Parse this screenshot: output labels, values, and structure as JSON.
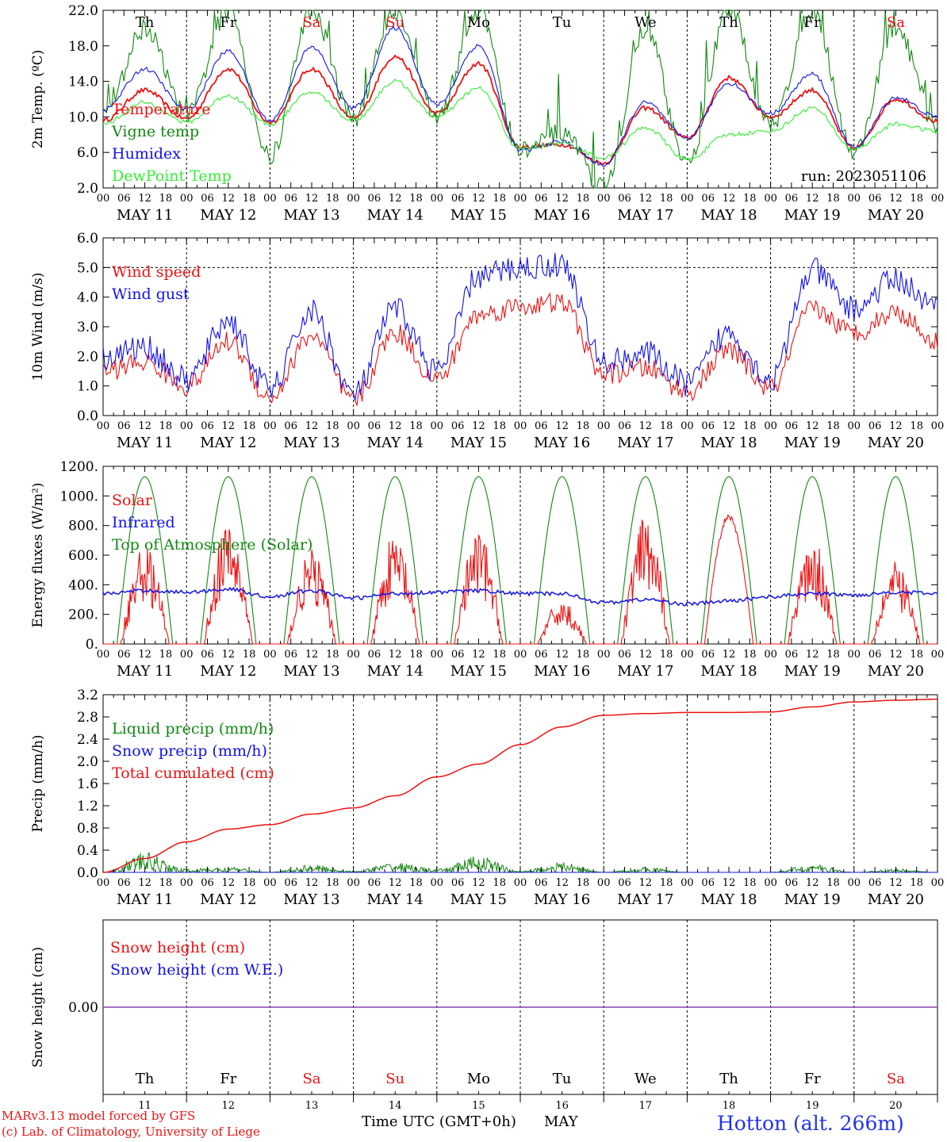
{
  "run_label": "run: 2023051106",
  "x_axis": {
    "hour_ticks": [
      "00",
      "06",
      "12",
      "18"
    ],
    "dates": [
      "MAY 11",
      "MAY 12",
      "MAY 13",
      "MAY 14",
      "MAY 15",
      "MAY 16",
      "MAY 17",
      "MAY 18",
      "MAY 19",
      "MAY 20"
    ],
    "weekdays": [
      "Th",
      "Fr",
      "Sa",
      "Su",
      "Mo",
      "Tu",
      "We",
      "Th",
      "Fr",
      "Sa"
    ],
    "weekday_colors": [
      "#000000",
      "#000000",
      "#ee1111",
      "#ee1111",
      "#000000",
      "#000000",
      "#000000",
      "#000000",
      "#000000",
      "#ee1111"
    ],
    "day_numbers": [
      "11",
      "12",
      "13",
      "14",
      "15",
      "16",
      "17",
      "18",
      "19",
      "20"
    ],
    "title": "Time UTC (GMT+0h)",
    "month": "MAY"
  },
  "footer": {
    "credit_line1": "MARv3.13 model forced by GFS",
    "credit_line2": "(c) Lab. of Climatology, University of Liege",
    "station": "Hotton (alt. 266m)"
  },
  "colors": {
    "red": "#ee1111",
    "blue": "#1111ee",
    "green": "#118811",
    "lightgreen": "#33ee33",
    "purple": "#8844aa"
  },
  "chart_data": [
    {
      "type": "line",
      "ylabel": "2m Temp. (ºC)",
      "ylim": [
        2.0,
        22.0
      ],
      "yticks": [
        "2.0",
        "6.0",
        "10.0",
        "14.0",
        "18.0",
        "22.0"
      ],
      "x": [
        "MAY 11 00",
        "MAY 11 12",
        "MAY 12 00",
        "MAY 12 12",
        "MAY 13 00",
        "MAY 13 12",
        "MAY 14 00",
        "MAY 14 12",
        "MAY 15 00",
        "MAY 15 12",
        "MAY 16 00",
        "MAY 16 12",
        "MAY 17 00",
        "MAY 17 12",
        "MAY 18 00",
        "MAY 18 12",
        "MAY 19 00",
        "MAY 19 12",
        "MAY 20 00",
        "MAY 20 12",
        "MAY 21 00"
      ],
      "series": [
        {
          "name": "Temperature",
          "color": "red",
          "values": [
            9.6,
            13.0,
            9.8,
            15.4,
            9.4,
            15.4,
            9.8,
            16.8,
            10.4,
            16.0,
            6.6,
            6.9,
            4.8,
            11.0,
            7.6,
            14.4,
            10.0,
            13.0,
            6.5,
            12.0,
            9.5
          ]
        },
        {
          "name": "Vigne temp",
          "color": "green",
          "values": [
            9.8,
            20.0,
            10.2,
            22.0,
            5.5,
            22.0,
            9.8,
            22.0,
            10.0,
            22.0,
            6.2,
            8.0,
            2.0,
            20.0,
            4.5,
            22.0,
            9.0,
            22.0,
            6.0,
            20.0,
            9.0
          ]
        },
        {
          "name": "Humidex",
          "color": "blue",
          "values": [
            10.8,
            15.4,
            10.8,
            17.4,
            9.6,
            17.8,
            11.0,
            20.0,
            11.4,
            18.0,
            6.2,
            7.2,
            4.6,
            11.6,
            7.6,
            13.8,
            10.4,
            14.8,
            6.6,
            12.2,
            10.0
          ]
        },
        {
          "name": "DewPoint Temp",
          "color": "lightgreen",
          "values": [
            9.2,
            11.6,
            9.4,
            12.4,
            9.2,
            12.8,
            9.6,
            14.0,
            10.0,
            13.2,
            6.4,
            7.0,
            5.4,
            8.8,
            5.2,
            8.0,
            8.4,
            11.0,
            6.4,
            9.2,
            8.4
          ]
        }
      ]
    },
    {
      "type": "line",
      "ylabel": "10m Wind (m/s)",
      "ylim": [
        0.0,
        6.0
      ],
      "yticks": [
        "0.0",
        "1.0",
        "2.0",
        "3.0",
        "4.0",
        "5.0",
        "6.0"
      ],
      "reference_line": 5.0,
      "x": [
        "MAY 11 00",
        "MAY 11 12",
        "MAY 12 00",
        "MAY 12 12",
        "MAY 13 00",
        "MAY 13 12",
        "MAY 14 00",
        "MAY 14 12",
        "MAY 15 00",
        "MAY 15 12",
        "MAY 16 00",
        "MAY 16 12",
        "MAY 17 00",
        "MAY 17 12",
        "MAY 18 00",
        "MAY 18 12",
        "MAY 19 00",
        "MAY 19 12",
        "MAY 20 00",
        "MAY 20 12",
        "MAY 21 00"
      ],
      "series": [
        {
          "name": "Wind speed",
          "color": "red",
          "values": [
            1.5,
            1.8,
            1.0,
            2.5,
            0.6,
            2.7,
            0.5,
            2.8,
            1.2,
            3.4,
            3.7,
            3.8,
            1.4,
            1.6,
            0.8,
            2.2,
            0.9,
            3.6,
            2.8,
            3.5,
            2.5
          ]
        },
        {
          "name": "Wind gust",
          "color": "blue",
          "values": [
            2.0,
            2.3,
            1.2,
            3.2,
            0.9,
            3.5,
            0.7,
            3.6,
            1.5,
            4.7,
            5.0,
            5.1,
            1.8,
            2.1,
            1.1,
            2.8,
            1.2,
            4.9,
            3.6,
            4.6,
            3.6
          ]
        }
      ]
    },
    {
      "type": "line",
      "ylabel": "Energy fluxes (W/m²)",
      "ylim": [
        0,
        1200
      ],
      "yticks": [
        "0.",
        "200.",
        "400.",
        "600.",
        "800.",
        "1000.",
        "1200."
      ],
      "x": [
        "MAY 11 00",
        "MAY 11 12",
        "MAY 12 00",
        "MAY 12 12",
        "MAY 13 00",
        "MAY 13 12",
        "MAY 14 00",
        "MAY 14 12",
        "MAY 15 00",
        "MAY 15 12",
        "MAY 16 00",
        "MAY 16 12",
        "MAY 17 00",
        "MAY 17 12",
        "MAY 18 00",
        "MAY 18 12",
        "MAY 19 00",
        "MAY 19 12",
        "MAY 20 00",
        "MAY 20 12",
        "MAY 21 00"
      ],
      "solar_peaks": [
        680,
        820,
        640,
        750,
        770,
        300,
        860,
        880,
        730,
        560
      ],
      "series": [
        {
          "name": "Solar",
          "color": "red"
        },
        {
          "name": "Infrared",
          "color": "blue",
          "values": [
            340,
            360,
            350,
            370,
            320,
            360,
            310,
            340,
            350,
            360,
            340,
            340,
            280,
            300,
            270,
            290,
            320,
            340,
            330,
            350,
            340
          ]
        },
        {
          "name": "Top of Atmosphere (Solar)",
          "color": "green",
          "peak": 1130
        }
      ]
    },
    {
      "type": "line",
      "ylabel": "Precip (mm/h)",
      "ylim": [
        0.0,
        3.2
      ],
      "yticks": [
        "0.0",
        "0.4",
        "0.8",
        "1.2",
        "1.6",
        "2.0",
        "2.4",
        "2.8",
        "3.2"
      ],
      "x": [
        "MAY 11 00",
        "MAY 11 12",
        "MAY 12 00",
        "MAY 12 12",
        "MAY 13 00",
        "MAY 13 12",
        "MAY 14 00",
        "MAY 14 12",
        "MAY 15 00",
        "MAY 15 12",
        "MAY 16 00",
        "MAY 16 12",
        "MAY 17 00",
        "MAY 17 12",
        "MAY 18 00",
        "MAY 18 12",
        "MAY 19 00",
        "MAY 19 12",
        "MAY 20 00",
        "MAY 20 12",
        "MAY 21 00"
      ],
      "series": [
        {
          "name": "Liquid precip (mm/h)",
          "color": "green",
          "values": [
            0.0,
            0.3,
            0.05,
            0.08,
            0.0,
            0.12,
            0.02,
            0.15,
            0.05,
            0.25,
            0.02,
            0.15,
            0.0,
            0.08,
            0.0,
            0.0,
            0.0,
            0.12,
            0.0,
            0.05,
            0.0
          ]
        },
        {
          "name": "Snow precip (mm/h)",
          "color": "blue",
          "values": [
            0,
            0,
            0,
            0,
            0,
            0,
            0,
            0,
            0,
            0,
            0,
            0,
            0,
            0,
            0,
            0,
            0,
            0,
            0,
            0,
            0
          ]
        },
        {
          "name": "Total cumulated (cm)",
          "color": "red",
          "values": [
            0.0,
            0.25,
            0.55,
            0.78,
            0.86,
            1.05,
            1.16,
            1.38,
            1.72,
            1.95,
            2.3,
            2.62,
            2.83,
            2.86,
            2.88,
            2.88,
            2.89,
            2.98,
            3.07,
            3.1,
            3.12
          ]
        }
      ]
    },
    {
      "type": "line",
      "ylabel": "Snow height (cm)",
      "yticks": [
        "0.00"
      ],
      "series": [
        {
          "name": "Snow height (cm)",
          "color": "red",
          "values": [
            0.0,
            0.0
          ]
        },
        {
          "name": "Snow height (cm W.E.)",
          "color": "blue",
          "values": [
            0.0,
            0.0
          ]
        }
      ]
    }
  ]
}
